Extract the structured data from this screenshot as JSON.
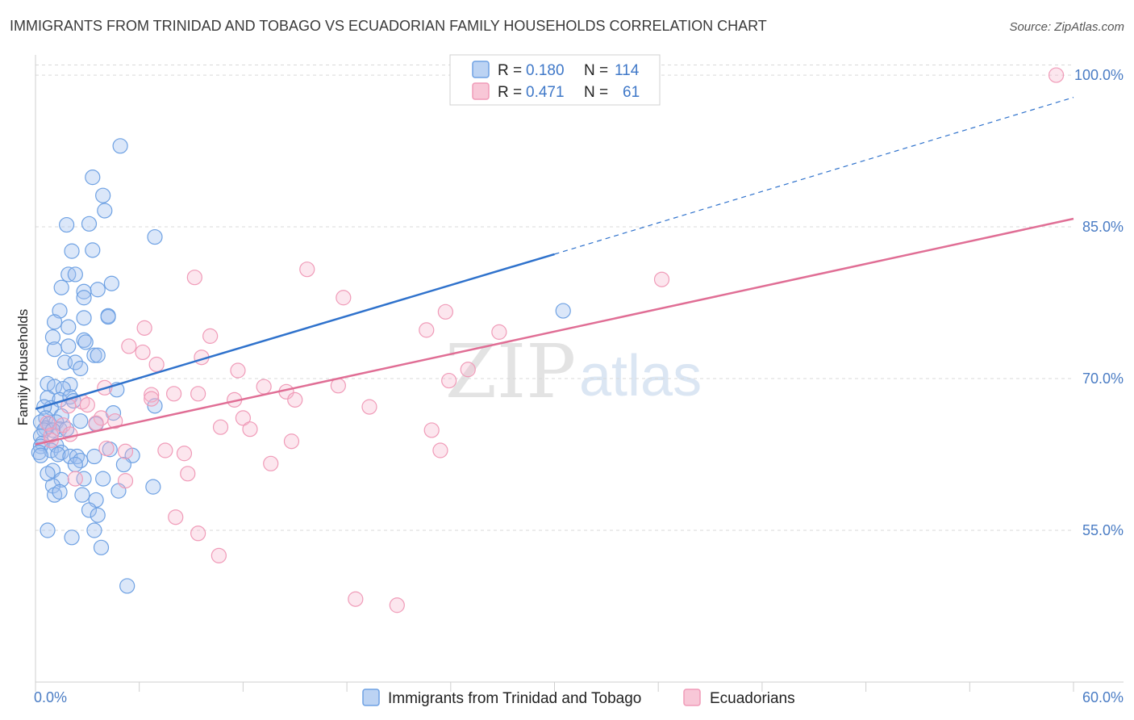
{
  "header": {
    "title": "IMMIGRANTS FROM TRINIDAD AND TOBAGO VS ECUADORIAN FAMILY HOUSEHOLDS CORRELATION CHART",
    "source": "Source: ZipAtlas.com"
  },
  "legend_top": {
    "series1": {
      "r_label": "R =",
      "r_value": "0.180",
      "n_label": "N =",
      "n_value": "114"
    },
    "series2": {
      "r_label": "R =",
      "r_value": "0.471",
      "n_label": "N =",
      "n_value": "61"
    }
  },
  "watermark": {
    "zip": "ZIP",
    "atlas": "atlas"
  },
  "colors": {
    "blue": "#6ea1e3",
    "blue_line": "#2f72cc",
    "pink": "#f09bb8",
    "pink_line": "#e06e95",
    "grid": "#d9d9d9",
    "tick_text": "#4a7cc4"
  },
  "chart_data": {
    "type": "scatter",
    "title": "IMMIGRANTS FROM TRINIDAD AND TOBAGO VS ECUADORIAN FAMILY HOUSEHOLDS CORRELATION CHART",
    "xlabel": "",
    "ylabel": "Family Households",
    "xlim": [
      0,
      60
    ],
    "ylim": [
      40,
      102
    ],
    "x_ticks": [
      0,
      6,
      12,
      18,
      24,
      30,
      36,
      42,
      48,
      54,
      60
    ],
    "x_tick_labels": {
      "left": "0.0%",
      "right": "60.0%"
    },
    "y_ticks": [
      55,
      70,
      85,
      100
    ],
    "y_tick_labels": [
      "55.0%",
      "70.0%",
      "85.0%",
      "100.0%"
    ],
    "grid": true,
    "legend_position": "top-center",
    "series": [
      {
        "name": "Immigrants from Trinidad and Tobago",
        "color": "#6ea1e3",
        "r": 0.18,
        "n": 114,
        "trend": {
          "x0": 0,
          "y0": 67.0,
          "x1": 30,
          "y1": 82.3,
          "dash_to_x": 60,
          "dash_to_y": 97.8
        },
        "points": [
          [
            4.9,
            93.0
          ],
          [
            3.3,
            89.9
          ],
          [
            3.9,
            88.1
          ],
          [
            4.0,
            86.6
          ],
          [
            1.8,
            85.2
          ],
          [
            3.1,
            85.3
          ],
          [
            6.9,
            84.0
          ],
          [
            2.1,
            82.6
          ],
          [
            3.3,
            82.7
          ],
          [
            1.9,
            80.3
          ],
          [
            2.3,
            80.3
          ],
          [
            4.4,
            79.4
          ],
          [
            1.5,
            79.0
          ],
          [
            3.6,
            78.8
          ],
          [
            2.8,
            78.6
          ],
          [
            2.8,
            78.0
          ],
          [
            1.4,
            76.7
          ],
          [
            4.2,
            76.2
          ],
          [
            4.2,
            76.1
          ],
          [
            2.8,
            76.0
          ],
          [
            30.5,
            76.7
          ],
          [
            1.1,
            75.6
          ],
          [
            1.9,
            75.1
          ],
          [
            1.0,
            74.1
          ],
          [
            2.8,
            73.8
          ],
          [
            2.9,
            73.6
          ],
          [
            1.9,
            73.2
          ],
          [
            1.1,
            72.9
          ],
          [
            3.4,
            72.3
          ],
          [
            3.6,
            72.3
          ],
          [
            1.7,
            71.6
          ],
          [
            2.3,
            71.6
          ],
          [
            2.6,
            71.0
          ],
          [
            4.7,
            68.9
          ],
          [
            0.7,
            69.5
          ],
          [
            1.1,
            69.2
          ],
          [
            2.0,
            69.4
          ],
          [
            1.6,
            69.0
          ],
          [
            0.7,
            68.1
          ],
          [
            1.4,
            67.9
          ],
          [
            2.0,
            68.2
          ],
          [
            2.2,
            67.8
          ],
          [
            6.9,
            67.3
          ],
          [
            0.9,
            67.1
          ],
          [
            0.5,
            67.2
          ],
          [
            1.5,
            66.3
          ],
          [
            4.5,
            66.6
          ],
          [
            0.6,
            66.1
          ],
          [
            0.3,
            65.7
          ],
          [
            0.8,
            65.5
          ],
          [
            0.6,
            65.1
          ],
          [
            1.2,
            65.7
          ],
          [
            2.6,
            65.8
          ],
          [
            3.5,
            65.5
          ],
          [
            0.5,
            64.9
          ],
          [
            1.4,
            65.0
          ],
          [
            0.3,
            64.3
          ],
          [
            1.0,
            64.9
          ],
          [
            1.8,
            65.0
          ],
          [
            0.4,
            63.6
          ],
          [
            1.2,
            63.4
          ],
          [
            0.3,
            63.3
          ],
          [
            0.9,
            62.9
          ],
          [
            0.2,
            62.7
          ],
          [
            1.5,
            62.7
          ],
          [
            4.3,
            63.0
          ],
          [
            0.3,
            62.4
          ],
          [
            1.3,
            62.5
          ],
          [
            2.0,
            62.3
          ],
          [
            2.4,
            62.3
          ],
          [
            3.4,
            62.3
          ],
          [
            5.6,
            62.4
          ],
          [
            2.6,
            61.9
          ],
          [
            5.1,
            61.5
          ],
          [
            2.3,
            61.5
          ],
          [
            1.0,
            60.9
          ],
          [
            0.7,
            60.6
          ],
          [
            3.9,
            60.1
          ],
          [
            1.5,
            60.0
          ],
          [
            2.8,
            60.1
          ],
          [
            1.0,
            59.4
          ],
          [
            6.8,
            59.3
          ],
          [
            4.8,
            58.9
          ],
          [
            2.7,
            58.5
          ],
          [
            1.1,
            58.5
          ],
          [
            1.4,
            58.8
          ],
          [
            3.5,
            58.0
          ],
          [
            3.1,
            57.0
          ],
          [
            3.6,
            56.5
          ],
          [
            0.7,
            55.0
          ],
          [
            3.4,
            55.0
          ],
          [
            2.1,
            54.3
          ],
          [
            3.8,
            53.3
          ],
          [
            5.3,
            49.5
          ]
        ]
      },
      {
        "name": "Ecuadorians",
        "color": "#f09bb8",
        "r": 0.471,
        "n": 61,
        "trend": {
          "x0": 0,
          "y0": 63.5,
          "x1": 60,
          "y1": 85.8
        },
        "points": [
          [
            59.0,
            100.0
          ],
          [
            15.7,
            80.8
          ],
          [
            9.2,
            80.0
          ],
          [
            36.2,
            79.8
          ],
          [
            17.8,
            78.0
          ],
          [
            23.7,
            76.6
          ],
          [
            22.6,
            74.8
          ],
          [
            26.8,
            74.6
          ],
          [
            6.3,
            75.0
          ],
          [
            10.1,
            74.2
          ],
          [
            5.4,
            73.2
          ],
          [
            6.2,
            72.6
          ],
          [
            9.6,
            72.1
          ],
          [
            7.0,
            71.4
          ],
          [
            11.7,
            70.8
          ],
          [
            23.9,
            69.8
          ],
          [
            25.0,
            70.9
          ],
          [
            4.0,
            69.1
          ],
          [
            13.2,
            69.2
          ],
          [
            14.5,
            68.7
          ],
          [
            17.5,
            69.3
          ],
          [
            6.7,
            68.4
          ],
          [
            8.0,
            68.5
          ],
          [
            9.4,
            68.5
          ],
          [
            6.7,
            68.0
          ],
          [
            11.5,
            67.9
          ],
          [
            15.0,
            67.9
          ],
          [
            19.3,
            67.2
          ],
          [
            2.7,
            67.7
          ],
          [
            1.9,
            67.3
          ],
          [
            3.0,
            67.4
          ],
          [
            3.8,
            66.1
          ],
          [
            4.6,
            65.8
          ],
          [
            12.0,
            66.1
          ],
          [
            0.7,
            65.6
          ],
          [
            1.6,
            65.4
          ],
          [
            3.5,
            65.6
          ],
          [
            10.7,
            65.2
          ],
          [
            12.4,
            65.0
          ],
          [
            22.9,
            64.9
          ],
          [
            2.0,
            64.5
          ],
          [
            0.9,
            64.4
          ],
          [
            0.9,
            63.9
          ],
          [
            14.8,
            63.8
          ],
          [
            4.1,
            63.1
          ],
          [
            5.2,
            62.8
          ],
          [
            7.5,
            62.9
          ],
          [
            8.6,
            62.6
          ],
          [
            23.4,
            62.9
          ],
          [
            5.2,
            59.9
          ],
          [
            13.6,
            61.6
          ],
          [
            8.8,
            60.6
          ],
          [
            2.3,
            60.1
          ],
          [
            8.1,
            56.3
          ],
          [
            9.4,
            54.7
          ],
          [
            10.6,
            52.5
          ],
          [
            18.5,
            48.2
          ],
          [
            20.9,
            47.6
          ]
        ]
      }
    ]
  },
  "legend_bottom": {
    "items": [
      "Immigrants from Trinidad and Tobago",
      "Ecuadorians"
    ]
  }
}
